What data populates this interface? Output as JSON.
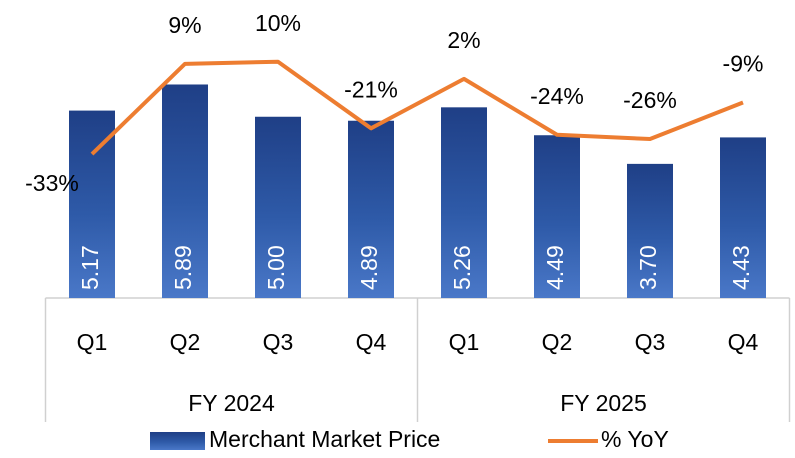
{
  "chart_data": {
    "type": "bar_line",
    "groups": [
      {
        "name": "FY 2024",
        "categories": [
          "Q1",
          "Q2",
          "Q3",
          "Q4"
        ]
      },
      {
        "name": "FY 2025",
        "categories": [
          "Q1",
          "Q2",
          "Q3",
          "Q4"
        ]
      }
    ],
    "series": [
      {
        "name": "Merchant Market Price",
        "type": "bar",
        "color": "#2e5aa8",
        "values": [
          5.17,
          5.89,
          5.0,
          4.89,
          5.26,
          4.49,
          3.7,
          4.43
        ],
        "value_labels": [
          "5.17",
          "5.89",
          "5.00",
          "4.89",
          "5.26",
          "4.49",
          "3.70",
          "4.43"
        ]
      },
      {
        "name": "% YoY",
        "type": "line",
        "axis": "y2",
        "color": "#ed7d31",
        "values": [
          -33,
          9,
          10,
          -21,
          2,
          -24,
          -26,
          -9
        ],
        "value_labels": [
          "-33%",
          "9%",
          "10%",
          "-21%",
          "2%",
          "-24%",
          "-26%",
          "-9%"
        ]
      }
    ],
    "ylim": [
      0,
      8
    ],
    "y2lim": [
      -100,
      35
    ],
    "legend": "bottom"
  }
}
